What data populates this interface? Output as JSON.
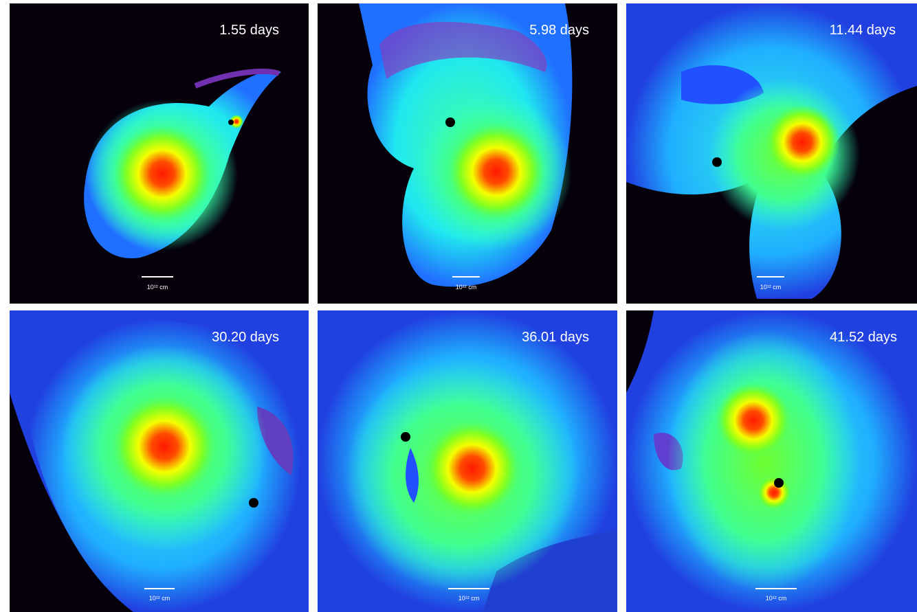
{
  "panels": [
    {
      "time": "1.55 days",
      "scale": "10¹² cm"
    },
    {
      "time": "5.98 days",
      "scale": "10¹² cm"
    },
    {
      "time": "11.44 days",
      "scale": "10¹² cm"
    },
    {
      "time": "30.20 days",
      "scale": "10¹² cm"
    },
    {
      "time": "36.01 days",
      "scale": "10¹² cm"
    },
    {
      "time": "41.52 days",
      "scale": "10¹² cm"
    }
  ]
}
